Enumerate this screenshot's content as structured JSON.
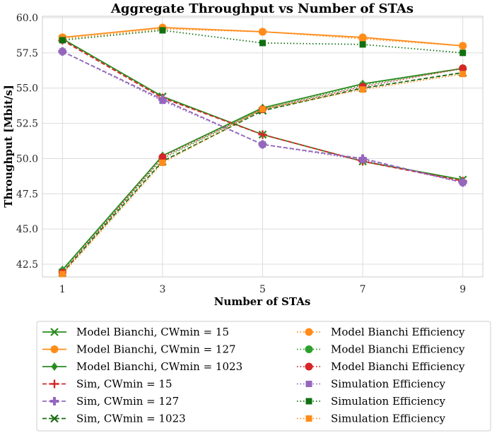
{
  "chart_data": {
    "type": "line",
    "title": "Aggregate Throughput vs Number of STAs",
    "xlabel": "Number of STAs",
    "ylabel": "Throughput [Mbit/s]",
    "x": [
      1,
      3,
      5,
      7,
      9
    ],
    "xticks": [
      "1",
      "3",
      "5",
      "7",
      "9"
    ],
    "xlim": [
      0.6,
      9.4
    ],
    "ylim": [
      41.6,
      60.1
    ],
    "yticks": [
      "42.5",
      "45.0",
      "47.5",
      "50.0",
      "52.5",
      "55.0",
      "57.5",
      "60.0"
    ],
    "grid": true,
    "legend_position": "bottom",
    "series": [
      {
        "name": "Model Bianchi, CWmin = 15",
        "color": "#2a8a1e",
        "dash": "solid",
        "marker": "x",
        "values": [
          58.5,
          54.4,
          51.7,
          49.8,
          48.5
        ]
      },
      {
        "name": "Model Bianchi, CWmin = 127",
        "color": "#ff8c1a",
        "dash": "solid",
        "marker": "o",
        "values": [
          58.6,
          59.3,
          59.0,
          58.6,
          58.0
        ]
      },
      {
        "name": "Model Bianchi, CWmin = 1023",
        "color": "#2a8a1e",
        "dash": "solid",
        "marker": "d",
        "values": [
          42.1,
          50.2,
          53.6,
          55.3,
          56.4
        ]
      },
      {
        "name": "Sim, CWmin = 15",
        "color": "#d62728",
        "dash": "dashed",
        "marker": "+",
        "values": [
          58.4,
          54.3,
          51.7,
          49.8,
          48.4
        ]
      },
      {
        "name": "Sim, CWmin = 127",
        "color": "#9467bd",
        "dash": "dashed",
        "marker": "P",
        "values": [
          57.6,
          54.2,
          51.0,
          50.0,
          48.3
        ]
      },
      {
        "name": "Sim, CWmin = 1023",
        "color": "#1a6b14",
        "dash": "dashed",
        "marker": "x",
        "values": [
          41.9,
          49.8,
          53.4,
          55.0,
          56.1
        ]
      },
      {
        "name": "Model Bianchi Efficiency",
        "color": "#ff8c1a",
        "dash": "dotted",
        "marker": "o",
        "values": [
          58.5,
          59.2,
          59.0,
          58.5,
          58.0
        ]
      },
      {
        "name": "Model Bianchi Efficiency",
        "color": "#2ca02c",
        "dash": "dotted",
        "marker": "o",
        "values": [
          42.0,
          50.0,
          53.5,
          55.2,
          56.4
        ]
      },
      {
        "name": "Model Bianchi Efficiency",
        "color": "#d62728",
        "dash": "dotted",
        "marker": "o",
        "values": [
          41.9,
          50.1,
          53.5,
          55.1,
          56.4
        ]
      },
      {
        "name": "Simulation Efficiency",
        "color": "#9467bd",
        "dash": "dotted",
        "marker": "s",
        "values": [
          57.6,
          54.1,
          51.0,
          49.9,
          48.3
        ]
      },
      {
        "name": "Simulation Efficiency",
        "color": "#107010",
        "dash": "dotted",
        "marker": "s",
        "values": [
          58.4,
          59.1,
          58.2,
          58.1,
          57.5
        ]
      },
      {
        "name": "Simulation Efficiency",
        "color": "#ff8c1a",
        "dash": "dotted",
        "marker": "s",
        "values": [
          41.8,
          49.7,
          53.5,
          54.9,
          56.0
        ]
      }
    ]
  }
}
